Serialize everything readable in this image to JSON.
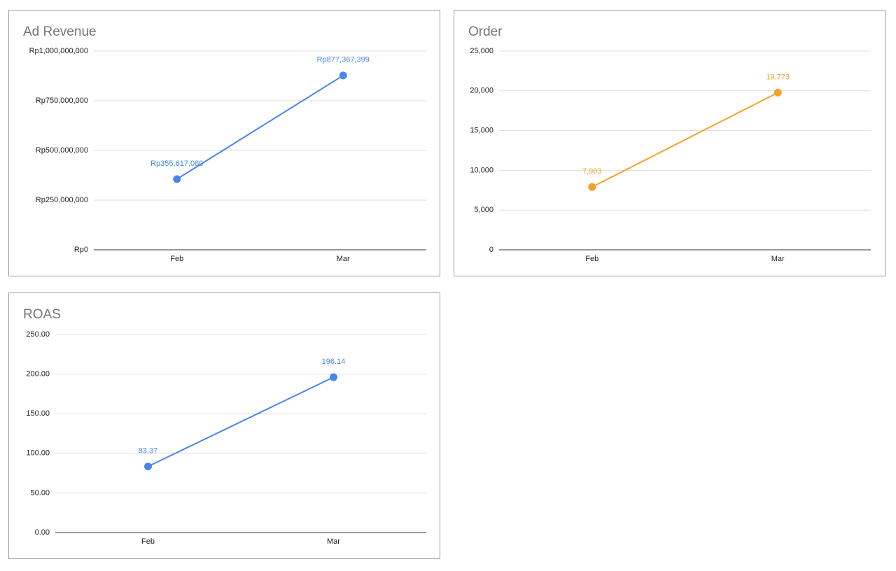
{
  "chart_data": [
    {
      "type": "line",
      "title": "Ad Revenue",
      "categories": [
        "Feb",
        "Mar"
      ],
      "values": [
        355617080,
        877367399
      ],
      "value_labels": [
        "Rp355,617,080",
        "Rp877,367,399"
      ],
      "color": "#4a86e8",
      "ylim": [
        0,
        1000000000
      ],
      "yticks": [
        {
          "value": 0,
          "label": "Rp0"
        },
        {
          "value": 250000000,
          "label": "Rp250,000,000"
        },
        {
          "value": 500000000,
          "label": "Rp500,000,000"
        },
        {
          "value": 750000000,
          "label": "Rp750,000,000"
        },
        {
          "value": 1000000000,
          "label": "Rp1,000,000,000"
        }
      ],
      "grid": true
    },
    {
      "type": "line",
      "title": "Order",
      "categories": [
        "Feb",
        "Mar"
      ],
      "values": [
        7903,
        19773
      ],
      "value_labels": [
        "7,903",
        "19,773"
      ],
      "color": "#f4a12e",
      "ylim": [
        0,
        25000
      ],
      "yticks": [
        0,
        {
          "value": 5000,
          "label": "5,000"
        },
        {
          "value": 10000,
          "label": "10,000"
        },
        {
          "value": 15000,
          "label": "15,000"
        },
        {
          "value": 20000,
          "label": "20,000"
        },
        {
          "value": 25000,
          "label": "25,000"
        }
      ],
      "grid": true
    },
    {
      "type": "line",
      "title": "ROAS",
      "categories": [
        "Feb",
        "Mar"
      ],
      "values": [
        83.37,
        196.14
      ],
      "color": "#4a86e8",
      "ylim": [
        0,
        250
      ],
      "yticks": [
        {
          "value": 0,
          "label": "0.00"
        },
        {
          "value": 50,
          "label": "50.00"
        },
        {
          "value": 100,
          "label": "100.00"
        },
        {
          "value": 150,
          "label": "150.00"
        },
        {
          "value": 200,
          "label": "200.00"
        },
        {
          "value": 250,
          "label": "250.00"
        }
      ],
      "grid": true
    }
  ]
}
